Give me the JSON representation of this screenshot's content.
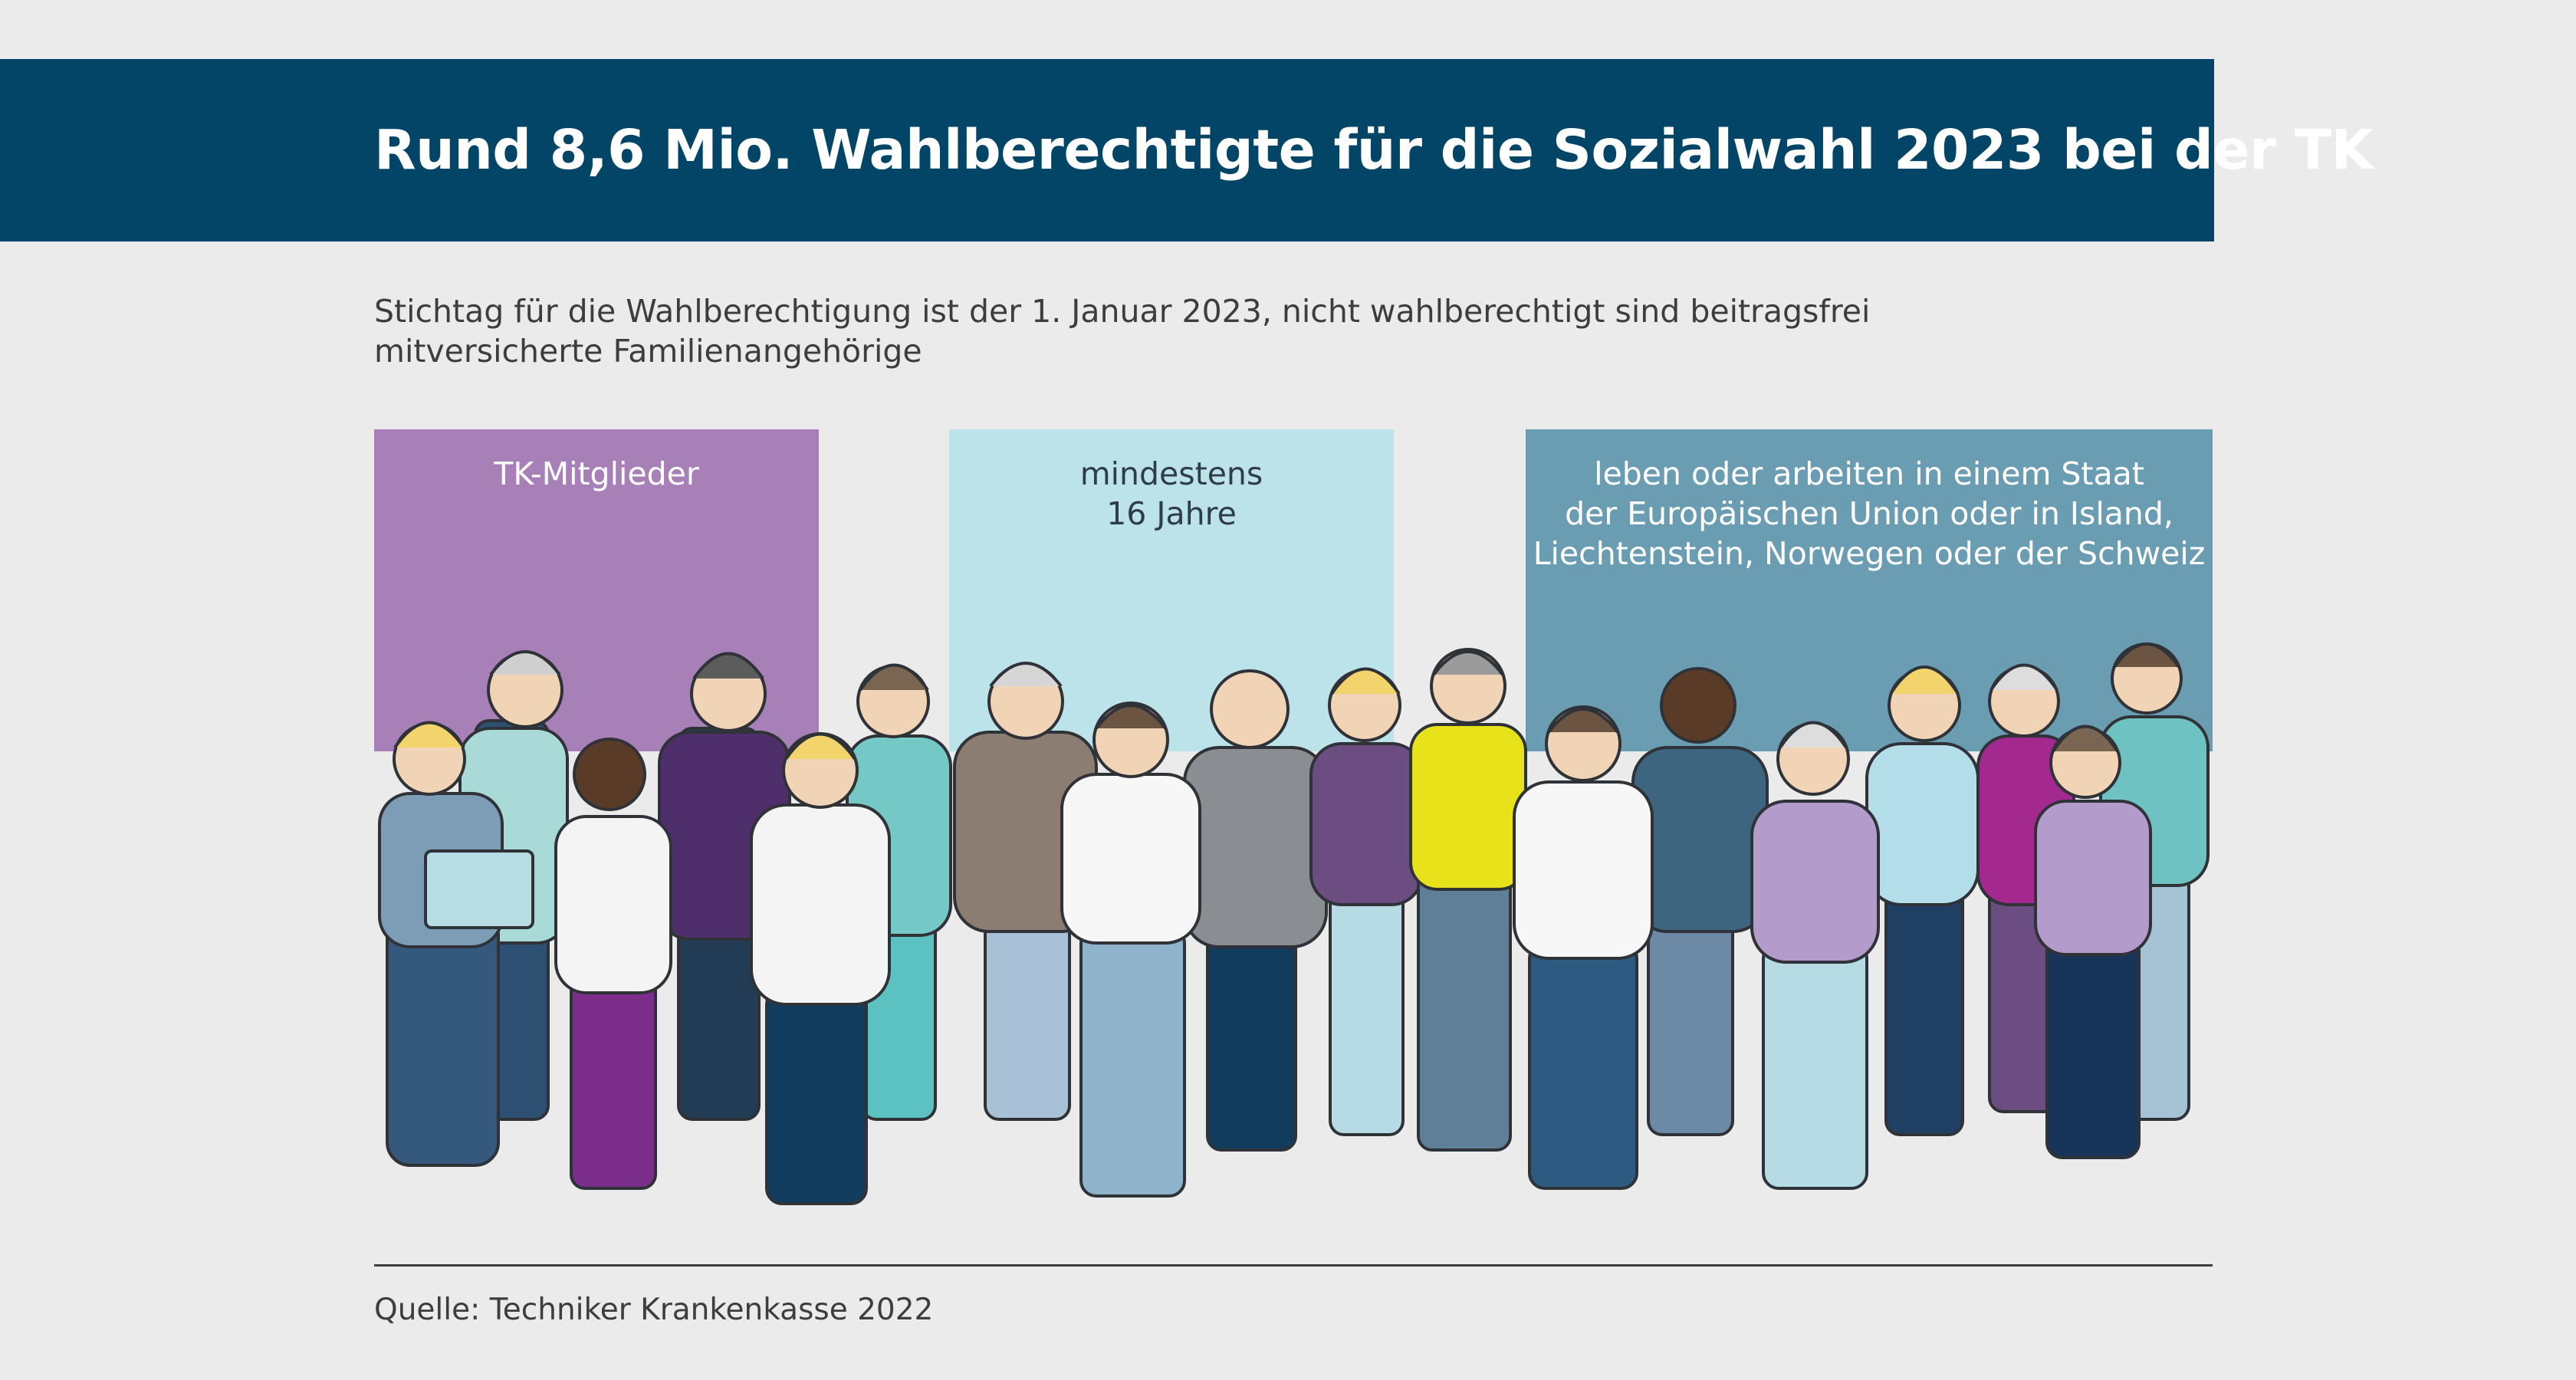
{
  "header": {
    "title": "Rund 8,6 Mio. Wahlberechtigte für die Sozialwahl 2023 bei der TK"
  },
  "subtitle": {
    "line1": "Stichtag für die Wahlberechtigung ist der 1. Januar 2023, nicht wahlberechtigt sind beitragsfrei",
    "line2": "mitversicherte Familienangehörige"
  },
  "panels": [
    {
      "lines": [
        "TK-Mitglieder"
      ],
      "color": "#a780b8"
    },
    {
      "lines": [
        "mindestens",
        "16 Jahre"
      ],
      "color": "#bde3ea"
    },
    {
      "lines": [
        "leben oder arbeiten in einem Staat",
        "der Europäischen Union oder in Island,",
        "Liechtenstein, Norwegen oder der Schweiz"
      ],
      "color": "#6b9db2"
    }
  ],
  "illustration": {
    "icon": "crowd-of-people-illustration"
  },
  "footer": {
    "source": "Quelle: Techniker Krankenkasse 2022"
  },
  "colors": {
    "banner": "#024567",
    "background": "#ebebeb"
  }
}
